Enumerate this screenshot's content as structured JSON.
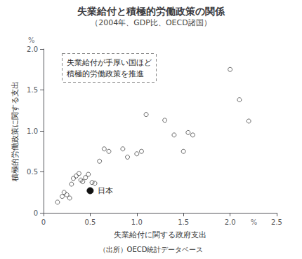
{
  "chart_data": {
    "type": "scatter",
    "title": "失業給付と積極的労働政策の関係",
    "subtitle": "（2004年、GDP比、OECD諸国）",
    "xlabel": "失業給付に関する政府支出",
    "ylabel": "積極的労働政策に関する支出",
    "x_unit": "%",
    "y_unit": "%",
    "source": "（出所）OECD統計データベース",
    "annotation": "失業給付が手厚い国ほど\n積極的労働政策を推進",
    "xlim": [
      0,
      2.5
    ],
    "ylim": [
      0,
      2.0
    ],
    "xticks": [
      0,
      0.5,
      {
        "value": 1.0,
        "label": "1.0"
      },
      1.5,
      {
        "value": 2.0,
        "label": "2.0"
      },
      2.5
    ],
    "yticks": [
      0,
      0.5,
      {
        "value": 1.0,
        "label": "1.0"
      },
      1.5,
      {
        "value": 2.0,
        "label": "2.0"
      }
    ],
    "grid": false,
    "series": [
      {
        "marker": "open_circle",
        "color": "#444444",
        "x": [
          0.15,
          0.2,
          0.22,
          0.25,
          0.28,
          0.3,
          0.32,
          0.35,
          0.38,
          0.4,
          0.42,
          0.45,
          0.48,
          0.52,
          0.55,
          0.6,
          0.65,
          0.7,
          0.85,
          0.9,
          1.0,
          1.05,
          1.1,
          1.3,
          1.4,
          1.5,
          1.55,
          1.6,
          2.0,
          2.1,
          2.2
        ],
        "values": [
          0.13,
          0.2,
          0.25,
          0.22,
          0.18,
          0.35,
          0.42,
          0.45,
          0.48,
          0.4,
          0.38,
          0.43,
          0.47,
          0.37,
          0.36,
          0.63,
          0.78,
          0.75,
          0.78,
          0.68,
          0.72,
          0.75,
          1.2,
          1.13,
          0.95,
          0.75,
          0.98,
          0.95,
          1.75,
          1.38,
          1.12
        ]
      },
      {
        "marker": "circle",
        "color": "#111111",
        "x": [
          0.5
        ],
        "values": [
          0.27
        ],
        "labels": [
          "日本"
        ]
      }
    ]
  }
}
